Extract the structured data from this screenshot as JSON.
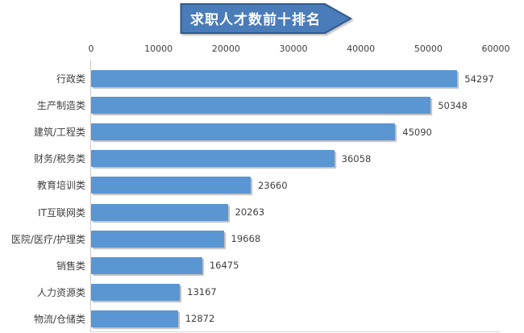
{
  "chart_data": {
    "type": "bar",
    "orientation": "horizontal",
    "title": "求职人才数前十排名",
    "categories": [
      "行政类",
      "生产制造类",
      "建筑/工程类",
      "财务/税务类",
      "教育培训类",
      "IT互联网类",
      "医院/医疗/护理类",
      "销售类",
      "人力资源类",
      "物流/仓储类"
    ],
    "values": [
      54297,
      50348,
      45090,
      36058,
      23660,
      20263,
      19668,
      16475,
      13167,
      12872
    ],
    "data_labels": [
      "54297",
      "50348",
      "45090",
      "36058",
      "23660",
      "20263",
      "19668",
      "16475",
      "13167",
      "12872"
    ],
    "xlabel": "",
    "ylabel": "",
    "x_axis": {
      "position": "top",
      "min": 0,
      "max": 60000,
      "ticks": [
        0,
        10000,
        20000,
        30000,
        40000,
        50000,
        60000
      ],
      "tick_labels": [
        "0",
        "10000",
        "20000",
        "30000",
        "40000",
        "50000",
        "60000"
      ]
    },
    "grid": false,
    "legend": false,
    "colors": {
      "bar": "#5a96d2",
      "banner_fill": "#4a7cba",
      "banner_border": "#2f5a8b",
      "banner_text": "#ffffff",
      "axis_line": "#c9c9c9",
      "text": "#3f3f3f"
    }
  }
}
